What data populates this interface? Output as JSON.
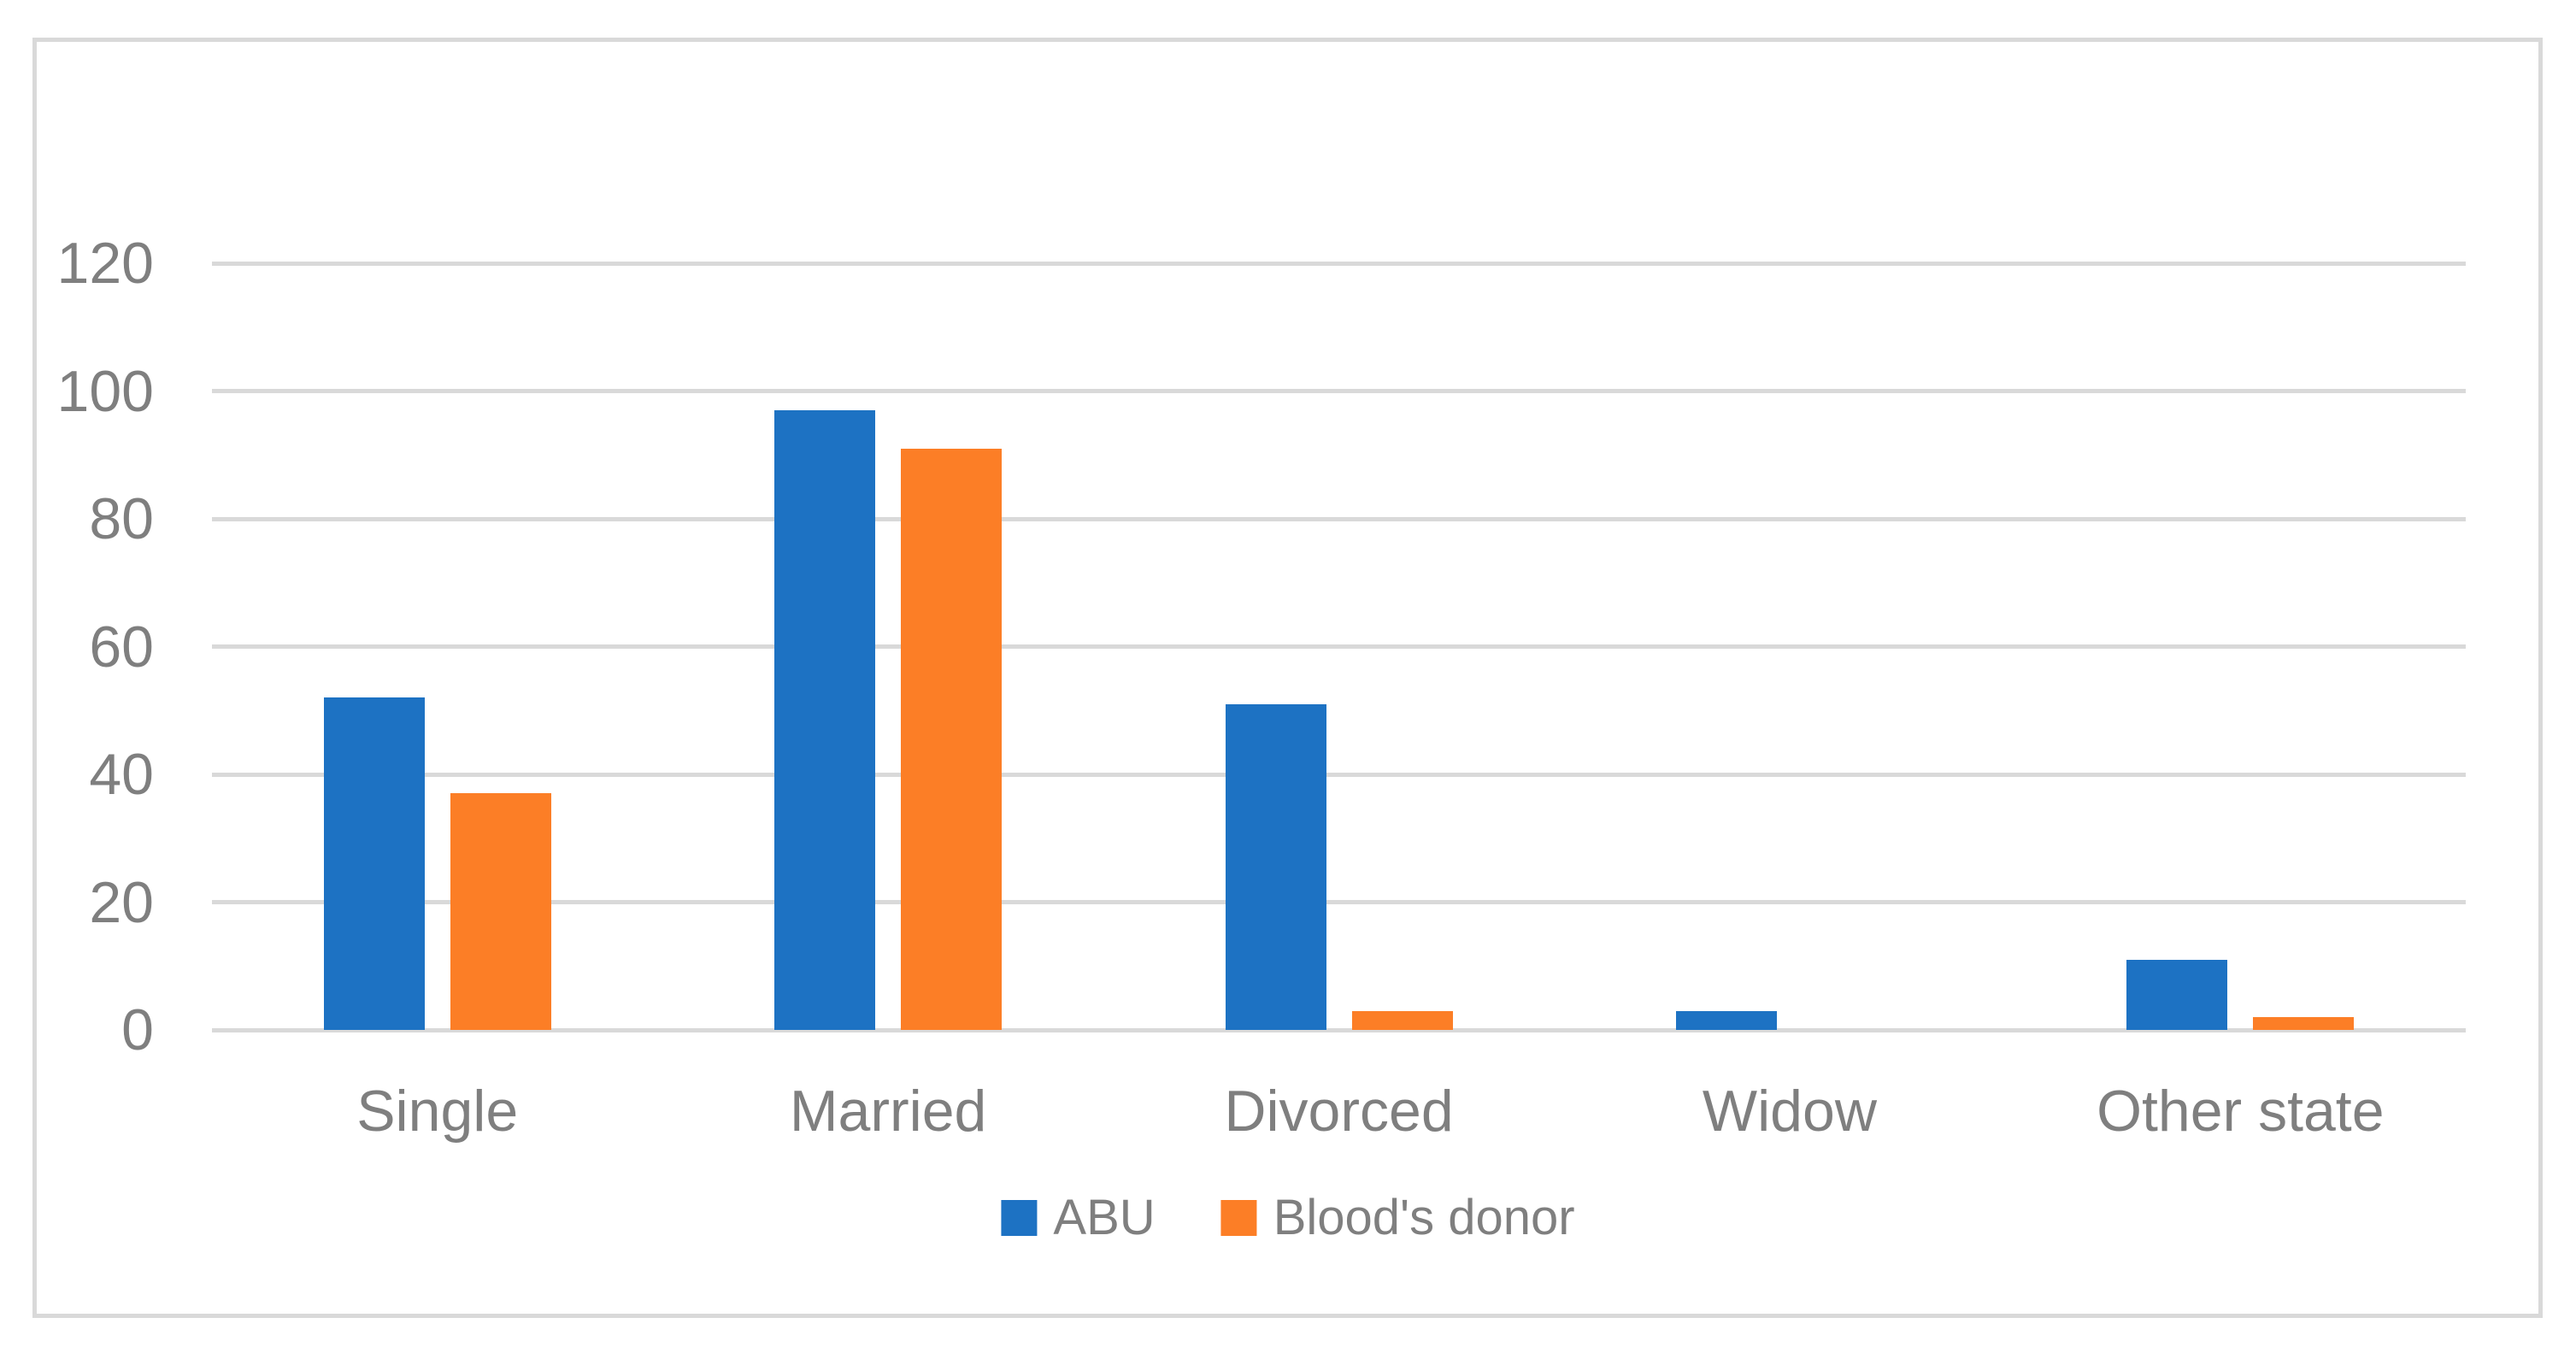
{
  "chart_data": {
    "type": "bar",
    "title": "",
    "xlabel": "",
    "ylabel": "",
    "categories": [
      "Single",
      "Married",
      "Divorced",
      "Widow",
      "Other state"
    ],
    "series": [
      {
        "name": "ABU",
        "color": "#1D72C3",
        "values": [
          52,
          97,
          51,
          3,
          11
        ]
      },
      {
        "name": "Blood's donor",
        "color": "#FC7E26",
        "values": [
          37,
          91,
          3,
          0,
          2
        ]
      }
    ],
    "ylim": [
      0,
      120
    ],
    "yticks": [
      0,
      20,
      40,
      60,
      80,
      100,
      120
    ],
    "grid": true,
    "legend_position": "bottom-center"
  },
  "style": {
    "gridline_color": "#D9D9D9",
    "border_color": "#D9D9D9",
    "text_color": "#7F7F7F",
    "background_color": "#FFFFFF"
  }
}
